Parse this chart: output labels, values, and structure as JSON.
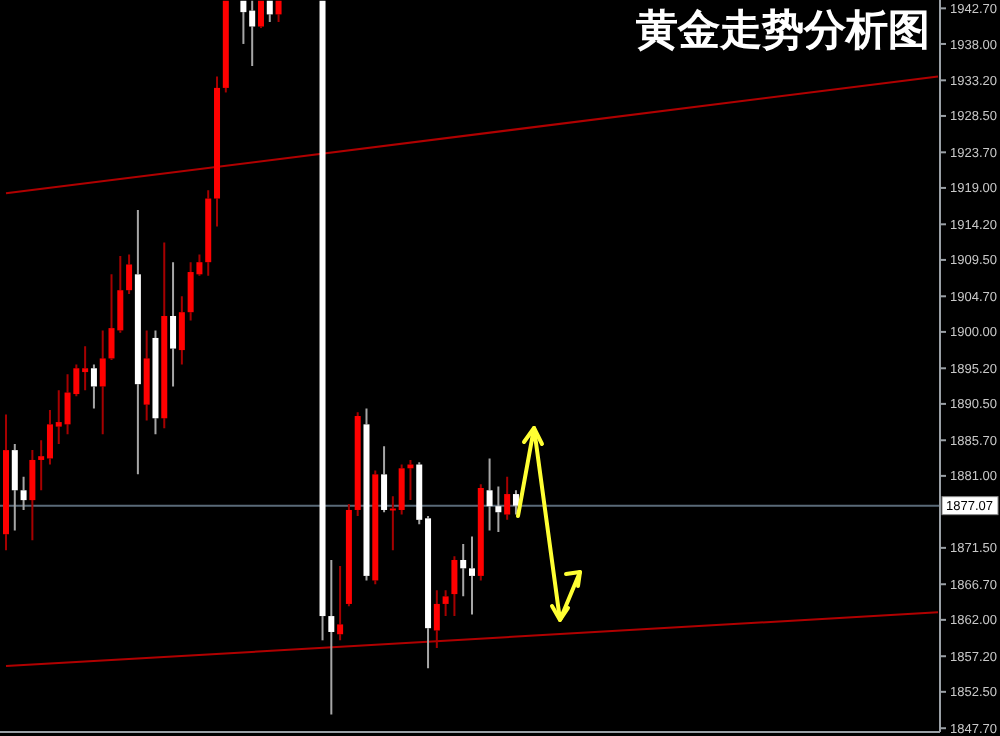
{
  "chart_data": {
    "type": "candlestick",
    "title": "黄金走势分析图",
    "categories": [
      null,
      null,
      null,
      null,
      null,
      null,
      null,
      null,
      null,
      null,
      null,
      null,
      null,
      null,
      null,
      null,
      null,
      null,
      null,
      null,
      null,
      null,
      null,
      null,
      null,
      null,
      null,
      null,
      null,
      null,
      null,
      null,
      null,
      null,
      null,
      null,
      null,
      null,
      null,
      null,
      null,
      null,
      null,
      null,
      null,
      null,
      null,
      null,
      null,
      null,
      null,
      null,
      null,
      null,
      null,
      null,
      null,
      null,
      null,
      null,
      null,
      null,
      null,
      null,
      null,
      null,
      null,
      null,
      null,
      null,
      null,
      null,
      null,
      null,
      null,
      null,
      null,
      null,
      null,
      null,
      null,
      null,
      null,
      null,
      null,
      null,
      null,
      null,
      null,
      null,
      null,
      null,
      null,
      null,
      null,
      null,
      null,
      null,
      null,
      null,
      null,
      null,
      null,
      null,
      null,
      null,
      null
    ],
    "ohlc": [
      [
        1873.3,
        1889.1,
        1871.2,
        1884.4
      ],
      [
        1884.4,
        1885.2,
        1873.8,
        1879.1
      ],
      [
        1879.1,
        1880.9,
        1876.5,
        1877.8
      ],
      [
        1877.8,
        1884.4,
        1872.5,
        1883.1
      ],
      [
        1883.1,
        1885.7,
        1879.1,
        1883.6
      ],
      [
        1883.3,
        1889.7,
        1882.5,
        1887.8
      ],
      [
        1887.5,
        1892.3,
        1885.2,
        1888.1
      ],
      [
        1887.8,
        1894.4,
        1886.5,
        1892.0
      ],
      [
        1891.8,
        1895.7,
        1891.5,
        1895.2
      ],
      [
        1894.7,
        1898.1,
        1892.3,
        1895.2
      ],
      [
        1895.2,
        1895.7,
        1889.9,
        1892.8
      ],
      [
        1892.8,
        1900.2,
        1886.5,
        1896.5
      ],
      [
        1896.5,
        1907.6,
        1896.3,
        1900.5
      ],
      [
        1900.2,
        1910.0,
        1899.9,
        1905.5
      ],
      [
        1905.5,
        1910.2,
        1905.0,
        1908.9
      ],
      [
        1907.6,
        1916.1,
        1881.2,
        1893.1
      ],
      [
        1890.4,
        1900.2,
        1888.3,
        1896.5
      ],
      [
        1899.2,
        1900.2,
        1886.5,
        1888.6
      ],
      [
        1888.6,
        1911.8,
        1887.3,
        1902.1
      ],
      [
        1902.1,
        1909.2,
        1892.8,
        1897.8
      ],
      [
        1897.6,
        1904.7,
        1895.7,
        1902.6
      ],
      [
        1902.6,
        1909.2,
        1901.5,
        1907.9
      ],
      [
        1907.6,
        1910.2,
        1907.4,
        1909.2
      ],
      [
        1909.2,
        1918.7,
        1907.4,
        1917.6
      ],
      [
        1917.6,
        1933.7,
        1913.9,
        1932.2
      ],
      [
        1932.2,
        1943.7,
        1931.6,
        1943.7
      ],
      null,
      [
        1943.7,
        1943.7,
        1938.0,
        1942.2
      ],
      [
        1942.4,
        1943.7,
        1935.1,
        1940.3
      ],
      [
        1940.3,
        1943.7,
        1940.1,
        1943.7
      ],
      [
        1943.7,
        1943.7,
        1940.9,
        1941.9
      ],
      [
        1941.9,
        1943.7,
        1940.9,
        1943.7
      ],
      null,
      null,
      null,
      null,
      [
        1943.7,
        1943.7,
        1859.3,
        1862.5
      ],
      [
        1862.5,
        1869.9,
        1849.5,
        1860.4
      ],
      [
        1860.1,
        1869.1,
        1859.3,
        1861.4
      ],
      [
        1864.1,
        1877.3,
        1863.8,
        1876.5
      ],
      [
        1876.5,
        1889.4,
        1875.7,
        1888.9
      ],
      [
        1887.8,
        1889.9,
        1867.2,
        1867.8
      ],
      [
        1867.2,
        1881.7,
        1866.7,
        1881.2
      ],
      [
        1881.2,
        1884.9,
        1876.2,
        1876.5
      ],
      [
        1876.5,
        1878.3,
        1871.2,
        1876.7
      ],
      [
        1876.5,
        1882.5,
        1875.9,
        1882.0
      ],
      [
        1882.0,
        1883.1,
        1877.8,
        1882.5
      ],
      [
        1882.5,
        1882.8,
        1874.6,
        1875.2
      ],
      [
        1875.4,
        1875.7,
        1855.6,
        1860.9
      ],
      [
        1860.6,
        1865.9,
        1858.3,
        1864.1
      ],
      [
        1864.1,
        1865.9,
        1862.5,
        1865.1
      ],
      [
        1865.4,
        1870.4,
        1862.5,
        1869.9
      ],
      [
        1869.9,
        1872.0,
        1865.1,
        1868.8
      ],
      [
        1868.8,
        1873.0,
        1862.7,
        1867.8
      ],
      [
        1867.8,
        1879.9,
        1867.2,
        1879.4
      ],
      [
        1879.1,
        1883.3,
        1873.8,
        1877.0
      ],
      [
        1877.0,
        1879.6,
        1873.6,
        1876.2
      ],
      [
        1875.9,
        1880.9,
        1875.2,
        1878.6
      ],
      [
        1878.6,
        1879.1,
        1875.9,
        1877.07
      ],
      null,
      null,
      null,
      null,
      null,
      null,
      null,
      null,
      null,
      null,
      null,
      null,
      null,
      null,
      null,
      null,
      null,
      null,
      null,
      null,
      null,
      null,
      null,
      null,
      null,
      null,
      null,
      null,
      null,
      null,
      null,
      null,
      null,
      null,
      null,
      null,
      null,
      null,
      null,
      null,
      null,
      null,
      null,
      null,
      null,
      null,
      null,
      null
    ],
    "colors": [
      "#ff0000",
      "#ffffff",
      "#ffffff",
      "#ff0000",
      "#ff0000",
      "#ff0000",
      "#ff0000",
      "#ff0000",
      "#ff0000",
      "#ff0000",
      "#ffffff",
      "#ff0000",
      "#ff0000",
      "#ff0000",
      "#ff0000",
      "#ffffff",
      "#ff0000",
      "#ffffff",
      "#ff0000",
      "#ffffff",
      "#ff0000",
      "#ff0000",
      "#ff0000",
      "#ff0000",
      "#ff0000",
      "#ff0000",
      null,
      "#ffffff",
      "#ffffff",
      "#ff0000",
      "#ffffff",
      "#ff0000",
      null,
      null,
      null,
      null,
      "#ffffff",
      "#ffffff",
      "#ff0000",
      "#ff0000",
      "#ff0000",
      "#ffffff",
      "#ff0000",
      "#ffffff",
      "#ff0000",
      "#ff0000",
      "#ff0000",
      "#ffffff",
      "#ffffff",
      "#ff0000",
      "#ff0000",
      "#ff0000",
      "#ffffff",
      "#ffffff",
      "#ff0000",
      "#ffffff",
      "#ffffff",
      "#ff0000",
      "#ffffff",
      null,
      null,
      null,
      null,
      null,
      null,
      null,
      null,
      null,
      null,
      null,
      null,
      null,
      null,
      null,
      null,
      null,
      null,
      null,
      null,
      null,
      null,
      null,
      null,
      null,
      null,
      null,
      null,
      null,
      null,
      null,
      null,
      null,
      null,
      null,
      null,
      null,
      null,
      null,
      null,
      null,
      null,
      null,
      null,
      null,
      null,
      null,
      null
    ],
    "series": [
      {
        "type": "line",
        "color": "#b00000",
        "values": [
          1918.3,
          null,
          null,
          null,
          null,
          null,
          null,
          null,
          null,
          null,
          null,
          null,
          null,
          null,
          null,
          null,
          null,
          null,
          null,
          null,
          null,
          null,
          null,
          null,
          null,
          null,
          null,
          null,
          null,
          null,
          null,
          null,
          null,
          null,
          null,
          null,
          null,
          null,
          null,
          null,
          null,
          null,
          null,
          null,
          null,
          null,
          null,
          null,
          null,
          null,
          null,
          null,
          null,
          null,
          null,
          null,
          null,
          null,
          null,
          null,
          null,
          null,
          null,
          null,
          null,
          null,
          null,
          null,
          null,
          null,
          null,
          null,
          null,
          null,
          null,
          null,
          null,
          null,
          null,
          null,
          null,
          null,
          null,
          null,
          null,
          null,
          null,
          null,
          null,
          null,
          null,
          null,
          null,
          null,
          null,
          null,
          null,
          null,
          null,
          null,
          null,
          null,
          null,
          null,
          null,
          null,
          1933.7
        ]
      },
      {
        "type": "line",
        "color": "#b00000",
        "values": [
          1855.9,
          null,
          null,
          null,
          null,
          null,
          null,
          null,
          null,
          null,
          null,
          null,
          null,
          null,
          null,
          null,
          null,
          null,
          null,
          null,
          null,
          null,
          null,
          null,
          null,
          null,
          null,
          null,
          null,
          null,
          null,
          null,
          null,
          null,
          null,
          null,
          null,
          null,
          null,
          null,
          null,
          null,
          null,
          null,
          null,
          null,
          null,
          null,
          null,
          null,
          null,
          null,
          null,
          null,
          null,
          null,
          null,
          null,
          null,
          null,
          null,
          null,
          null,
          null,
          null,
          null,
          null,
          null,
          null,
          null,
          null,
          null,
          null,
          null,
          null,
          null,
          null,
          null,
          null,
          null,
          null,
          null,
          null,
          null,
          null,
          null,
          null,
          null,
          null,
          null,
          null,
          null,
          null,
          null,
          null,
          null,
          null,
          null,
          null,
          null,
          null,
          null,
          null,
          null,
          null,
          null,
          1863.0
        ]
      }
    ],
    "ylim": [
      1847.2,
      1943.8
    ],
    "yticks": [
      {
        "value": 1942.7,
        "label": "1942.70"
      },
      {
        "value": 1938.0,
        "label": "1938.00"
      },
      {
        "value": 1933.2,
        "label": "1933.20"
      },
      {
        "value": 1928.5,
        "label": "1928.50"
      },
      {
        "value": 1923.7,
        "label": "1923.70"
      },
      {
        "value": 1919.0,
        "label": "1919.00"
      },
      {
        "value": 1914.2,
        "label": "1914.20"
      },
      {
        "value": 1909.5,
        "label": "1909.50"
      },
      {
        "value": 1904.7,
        "label": "1904.70"
      },
      {
        "value": 1900.0,
        "label": "1900.00"
      },
      {
        "value": 1895.2,
        "label": "1895.20"
      },
      {
        "value": 1890.5,
        "label": "1890.50"
      },
      {
        "value": 1885.7,
        "label": "1885.70"
      },
      {
        "value": 1881.0,
        "label": "1881.00"
      },
      {
        "value": 1871.5,
        "label": "1871.50"
      },
      {
        "value": 1866.7,
        "label": "1866.70"
      },
      {
        "value": 1862.0,
        "label": "1862.00"
      },
      {
        "value": 1857.2,
        "label": "1857.20"
      },
      {
        "value": 1852.5,
        "label": "1852.50"
      },
      {
        "value": 1847.7,
        "label": "1847.70"
      }
    ],
    "ref_lines": [
      {
        "axis": "y",
        "value": 1877.07,
        "label": "1877.07",
        "color": "#5a6a78"
      }
    ],
    "tick_labels": "y",
    "grid": false
  }
}
